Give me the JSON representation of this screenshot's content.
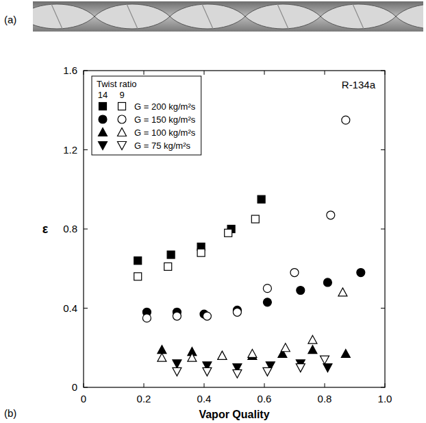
{
  "chart_data": {
    "type": "scatter",
    "panel_labels": [
      "(a)",
      "(b)"
    ],
    "annotation": "R-134a",
    "x_label": "Vapor Quality",
    "y_label": "ε",
    "legend_title": "Twist ratio",
    "legend": "top-left",
    "xlim": [
      0,
      1
    ],
    "ylim": [
      0,
      1.6
    ],
    "xticks": [
      0,
      0.2,
      0.4,
      0.6,
      0.8,
      {
        "value": 1,
        "label": "1.0"
      }
    ],
    "yticks": [
      0,
      0.4,
      0.8,
      1.2,
      1.6
    ],
    "grid": false,
    "series": [
      {
        "name": "G = 200 kg/m²s",
        "twist_ratio": "14",
        "color": "#000000",
        "marker": "filled-square",
        "x": [
          0.18,
          0.29,
          0.39,
          0.49,
          0.59
        ],
        "values": [
          0.64,
          0.67,
          0.71,
          0.8,
          0.95
        ]
      },
      {
        "name": "G = 200 kg/m²s",
        "twist_ratio": "9",
        "color": "#000000",
        "marker": "open-square",
        "x": [
          0.18,
          0.28,
          0.39,
          0.48,
          0.57
        ],
        "values": [
          0.56,
          0.61,
          0.68,
          0.78,
          0.85
        ]
      },
      {
        "name": "G = 150 kg/m²s",
        "twist_ratio": "14",
        "color": "#000000",
        "marker": "filled-circle",
        "x": [
          0.21,
          0.31,
          0.4,
          0.51,
          0.61,
          0.72,
          0.81,
          0.92
        ],
        "values": [
          0.38,
          0.38,
          0.37,
          0.39,
          0.43,
          0.49,
          0.53,
          0.58
        ]
      },
      {
        "name": "G = 150 kg/m²s",
        "twist_ratio": "9",
        "color": "#000000",
        "marker": "open-circle",
        "x": [
          0.21,
          0.31,
          0.41,
          0.51,
          0.61,
          0.7,
          0.82,
          0.87
        ],
        "values": [
          0.35,
          0.36,
          0.36,
          0.38,
          0.5,
          0.58,
          0.87,
          1.35
        ]
      },
      {
        "name": "G = 100 kg/m²s",
        "twist_ratio": "14",
        "color": "#000000",
        "marker": "filled-triangle-up",
        "x": [
          0.26,
          0.36,
          0.46,
          0.56,
          0.66,
          0.76,
          0.87
        ],
        "values": [
          0.19,
          0.18,
          0.16,
          0.16,
          0.17,
          0.19,
          0.17
        ]
      },
      {
        "name": "G = 100 kg/m²s",
        "twist_ratio": "9",
        "color": "#000000",
        "marker": "open-triangle-up",
        "x": [
          0.26,
          0.36,
          0.46,
          0.56,
          0.67,
          0.76,
          0.86
        ],
        "values": [
          0.15,
          0.15,
          0.16,
          0.17,
          0.2,
          0.24,
          0.48
        ]
      },
      {
        "name": "G = 75 kg/m²s",
        "twist_ratio": "14",
        "color": "#000000",
        "marker": "filled-triangle-down",
        "x": [
          0.31,
          0.41,
          0.51,
          0.62,
          0.72,
          0.81
        ],
        "values": [
          0.12,
          0.11,
          0.1,
          0.11,
          0.12,
          0.1
        ]
      },
      {
        "name": "G = 75 kg/m²s",
        "twist_ratio": "9",
        "color": "#000000",
        "marker": "open-triangle-down",
        "x": [
          0.31,
          0.41,
          0.51,
          0.61,
          0.72,
          0.8
        ],
        "values": [
          0.08,
          0.08,
          0.07,
          0.08,
          0.1,
          0.14
        ]
      }
    ]
  }
}
